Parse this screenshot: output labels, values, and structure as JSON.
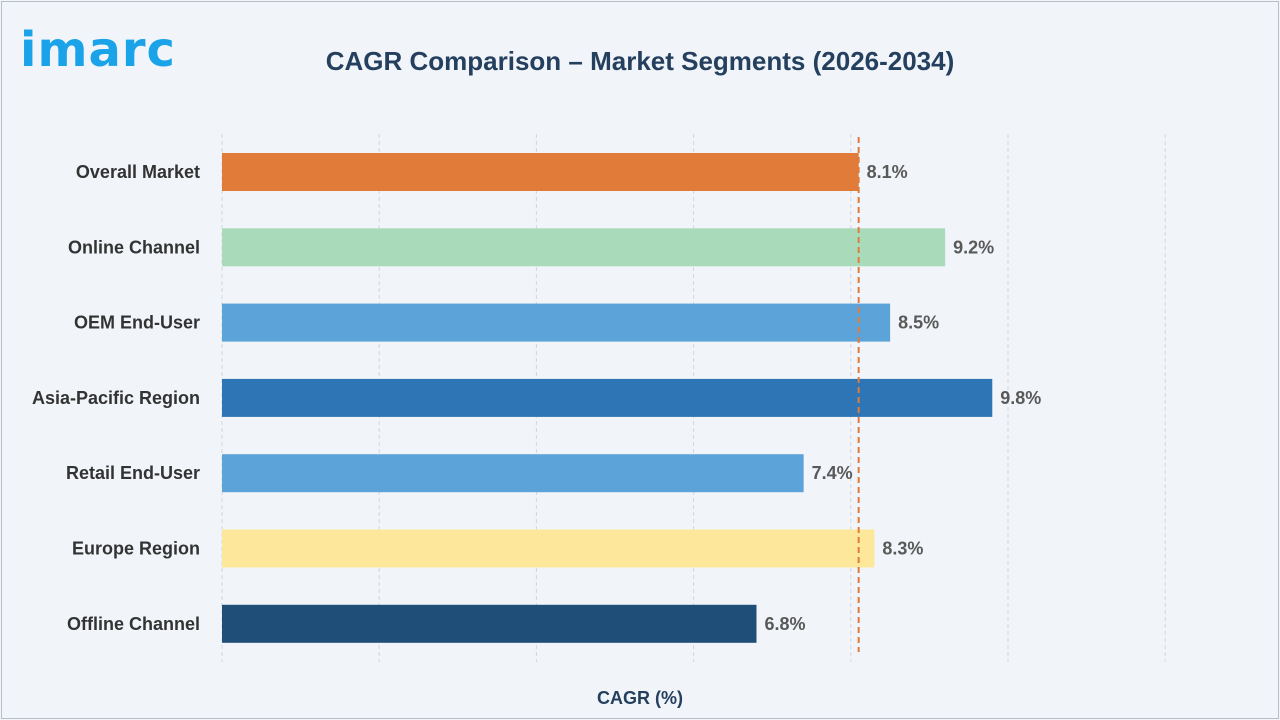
{
  "brand": {
    "logo_text": "imarc",
    "logo_color": "#1aa3e8"
  },
  "chart_data": {
    "type": "bar",
    "orientation": "horizontal",
    "title": "CAGR Comparison – Market Segments (2026-2034)",
    "xlabel": "CAGR (%)",
    "ylabel": "",
    "xlim": [
      0,
      12
    ],
    "grid": true,
    "reference_line": {
      "value": 8.1,
      "style": "dashed",
      "color": "#e07b39"
    },
    "categories": [
      "Overall Market",
      "Online Channel",
      "OEM End-User",
      "Asia-Pacific Region",
      "Retail End-User",
      "Europe Region",
      "Offline Channel"
    ],
    "values": [
      8.1,
      9.2,
      8.5,
      9.8,
      7.4,
      8.3,
      6.8
    ],
    "value_labels": [
      "8.1%",
      "9.2%",
      "8.5%",
      "9.8%",
      "7.4%",
      "8.3%",
      "6.8%"
    ],
    "colors": [
      "#e07b39",
      "#a9dbbb",
      "#5ba3d8",
      "#2e75b6",
      "#5ba3d8",
      "#fde79a",
      "#1f4e79"
    ]
  }
}
